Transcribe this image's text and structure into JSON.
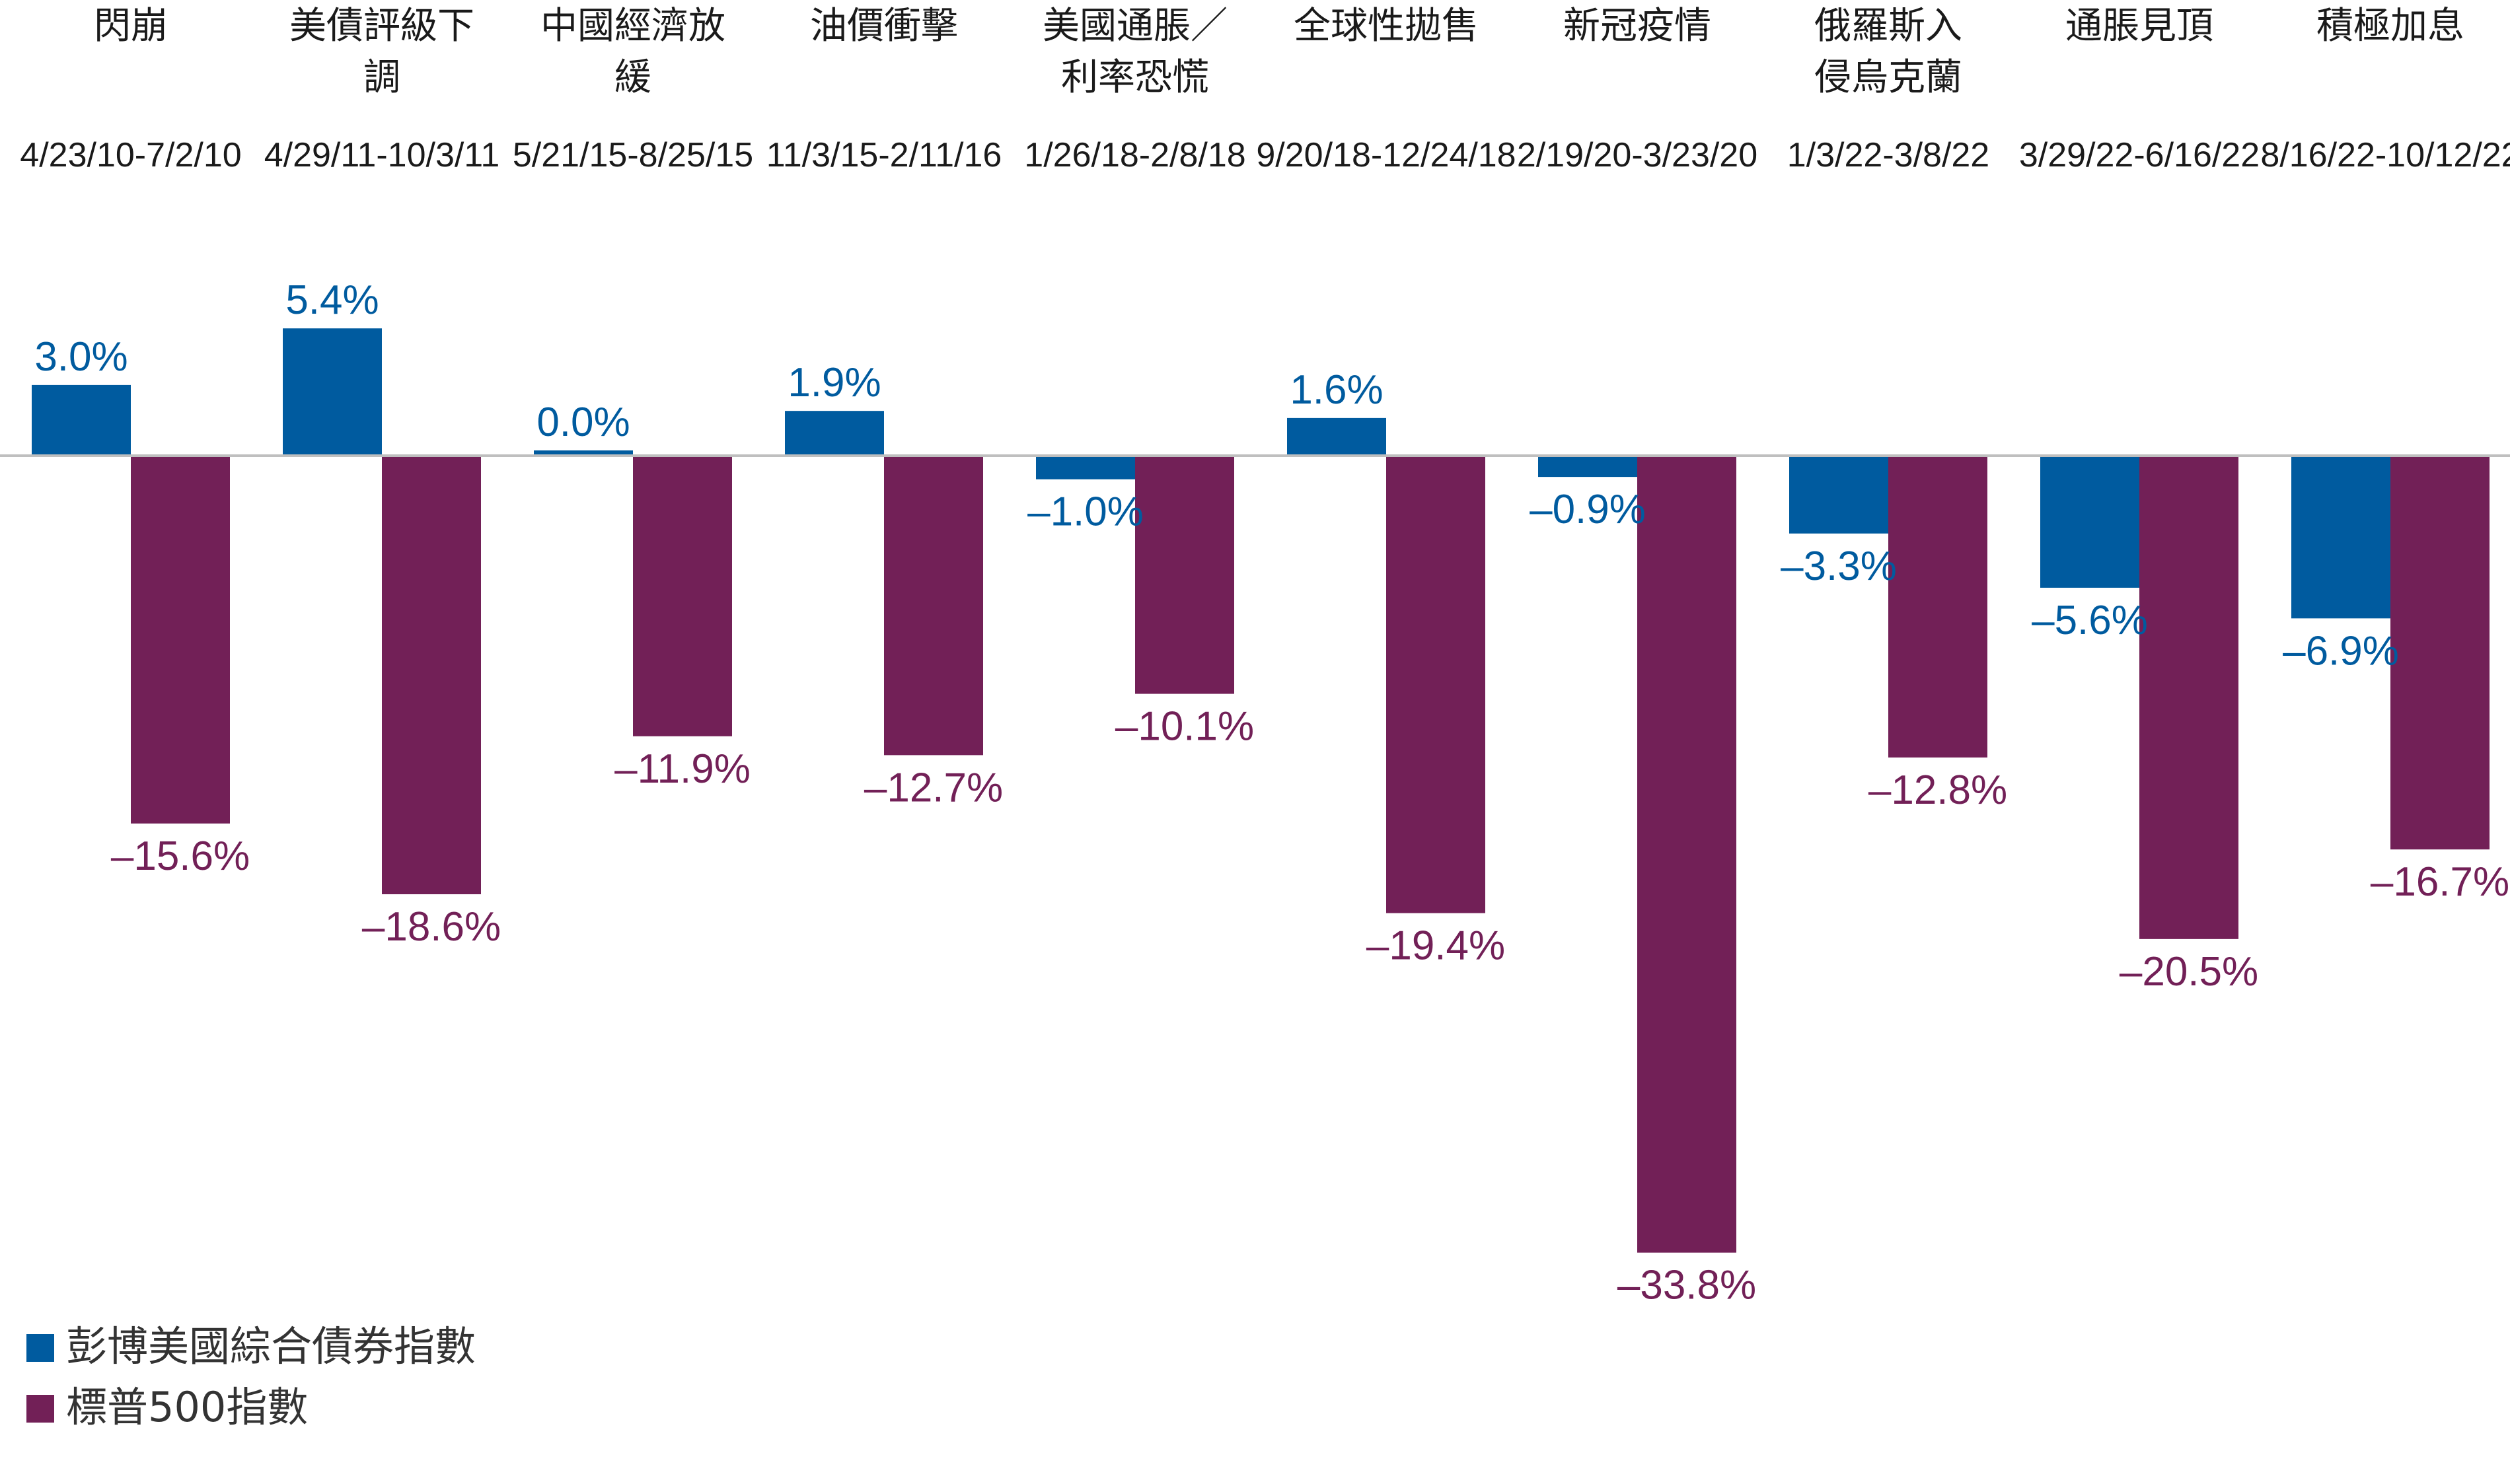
{
  "chart_data": {
    "type": "bar",
    "categories": [
      [
        "閃崩"
      ],
      [
        "美債評級下",
        "調"
      ],
      [
        "中國經濟放",
        "緩"
      ],
      [
        "油價衝擊"
      ],
      [
        "美國通脹／",
        "利率恐慌"
      ],
      [
        "全球性拋售"
      ],
      [
        "新冠疫情"
      ],
      [
        "俄羅斯入",
        "侵烏克蘭"
      ],
      [
        "通脹見頂"
      ],
      [
        "積極加息"
      ]
    ],
    "dates": [
      "4/23/10-7/2/10",
      "4/29/11-10/3/11",
      "5/21/15-8/25/15",
      "11/3/15-2/11/16",
      "1/26/18-2/8/18",
      "9/20/18-12/24/18",
      "2/19/20-3/23/20",
      "1/3/22-3/8/22",
      "3/29/22-6/16/22",
      "8/16/22-10/12/22"
    ],
    "series": [
      {
        "name": "彭博美國綜合債券指數",
        "color": "#005b9f",
        "values": [
          3.0,
          5.4,
          0.0,
          1.9,
          -1.0,
          1.6,
          -0.9,
          -3.3,
          -5.6,
          -6.9
        ],
        "labels": [
          "3.0%",
          "5.4%",
          "0.0%",
          "1.9%",
          "–1.0%",
          "1.6%",
          "–0.9%",
          "–3.3%",
          "–5.6%",
          "–6.9%"
        ]
      },
      {
        "name": "標普500指數",
        "color": "#722057",
        "values": [
          -15.6,
          -18.6,
          -11.9,
          -12.7,
          -10.1,
          -19.4,
          -33.8,
          -12.8,
          -20.5,
          -16.7
        ],
        "labels": [
          "–15.6%",
          "–18.6%",
          "–11.9%",
          "–12.7%",
          "–10.1%",
          "–19.4%",
          "–33.8%",
          "–12.8%",
          "–20.5%",
          "–16.7%"
        ]
      }
    ],
    "ylim": [
      -35,
      6
    ],
    "grid": false,
    "legend": "bottom-left"
  }
}
